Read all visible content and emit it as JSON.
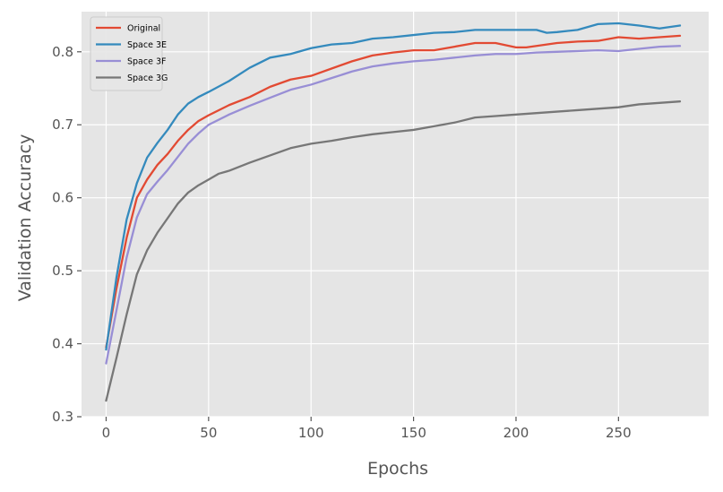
{
  "chart_data": {
    "type": "line",
    "title": "",
    "xlabel": "Epochs",
    "ylabel": "Validation Accuracy",
    "xlim": [
      -12,
      294
    ],
    "ylim": [
      0.3,
      0.855
    ],
    "xticks": [
      0,
      50,
      100,
      150,
      200,
      250
    ],
    "yticks": [
      0.3,
      0.4,
      0.5,
      0.6,
      0.7,
      0.8
    ],
    "ytick_labels": [
      "0.3",
      "0.4",
      "0.5",
      "0.6",
      "0.7",
      "0.8"
    ],
    "grid": true,
    "legend_position": "top-left",
    "background": "#e5e5e5",
    "series": [
      {
        "name": "Original",
        "color": "#e24a33",
        "x": [
          0,
          5,
          10,
          15,
          20,
          25,
          30,
          35,
          40,
          45,
          50,
          60,
          70,
          80,
          90,
          100,
          110,
          120,
          130,
          140,
          150,
          160,
          170,
          180,
          190,
          200,
          205,
          210,
          220,
          230,
          240,
          250,
          260,
          270,
          280
        ],
        "y": [
          0.395,
          0.475,
          0.545,
          0.6,
          0.625,
          0.645,
          0.66,
          0.678,
          0.693,
          0.705,
          0.713,
          0.727,
          0.738,
          0.752,
          0.762,
          0.767,
          0.777,
          0.787,
          0.795,
          0.799,
          0.802,
          0.802,
          0.807,
          0.812,
          0.812,
          0.806,
          0.806,
          0.808,
          0.812,
          0.814,
          0.815,
          0.82,
          0.818,
          0.82,
          0.822
        ]
      },
      {
        "name": "Space 3E",
        "color": "#348abd",
        "x": [
          0,
          5,
          10,
          15,
          20,
          25,
          30,
          35,
          40,
          45,
          50,
          60,
          70,
          80,
          90,
          100,
          110,
          120,
          130,
          140,
          150,
          160,
          170,
          180,
          190,
          200,
          210,
          215,
          220,
          230,
          240,
          250,
          260,
          270,
          280
        ],
        "y": [
          0.392,
          0.49,
          0.57,
          0.62,
          0.655,
          0.675,
          0.693,
          0.714,
          0.729,
          0.738,
          0.745,
          0.76,
          0.778,
          0.792,
          0.797,
          0.805,
          0.81,
          0.812,
          0.818,
          0.82,
          0.823,
          0.826,
          0.827,
          0.83,
          0.83,
          0.83,
          0.83,
          0.826,
          0.827,
          0.83,
          0.838,
          0.839,
          0.836,
          0.832,
          0.836
        ]
      },
      {
        "name": "Space 3F",
        "color": "#988ed5",
        "x": [
          0,
          5,
          10,
          15,
          20,
          25,
          30,
          35,
          40,
          45,
          50,
          60,
          70,
          80,
          90,
          100,
          110,
          120,
          130,
          140,
          150,
          160,
          170,
          180,
          190,
          200,
          210,
          220,
          230,
          240,
          250,
          260,
          270,
          280
        ],
        "y": [
          0.373,
          0.445,
          0.518,
          0.573,
          0.605,
          0.622,
          0.638,
          0.656,
          0.674,
          0.688,
          0.7,
          0.714,
          0.726,
          0.737,
          0.748,
          0.755,
          0.764,
          0.773,
          0.78,
          0.784,
          0.787,
          0.789,
          0.792,
          0.795,
          0.797,
          0.797,
          0.799,
          0.8,
          0.801,
          0.802,
          0.801,
          0.804,
          0.807,
          0.808
        ]
      },
      {
        "name": "Space 3G",
        "color": "#777777",
        "x": [
          0,
          5,
          10,
          15,
          20,
          25,
          30,
          35,
          40,
          45,
          50,
          55,
          60,
          70,
          80,
          90,
          100,
          110,
          120,
          130,
          140,
          150,
          160,
          170,
          180,
          190,
          200,
          210,
          220,
          230,
          240,
          250,
          260,
          270,
          280
        ],
        "y": [
          0.322,
          0.38,
          0.44,
          0.495,
          0.528,
          0.552,
          0.572,
          0.592,
          0.607,
          0.617,
          0.625,
          0.633,
          0.637,
          0.648,
          0.658,
          0.668,
          0.674,
          0.678,
          0.683,
          0.687,
          0.69,
          0.693,
          0.698,
          0.703,
          0.71,
          0.712,
          0.714,
          0.716,
          0.718,
          0.72,
          0.722,
          0.724,
          0.728,
          0.73,
          0.732
        ]
      }
    ]
  }
}
